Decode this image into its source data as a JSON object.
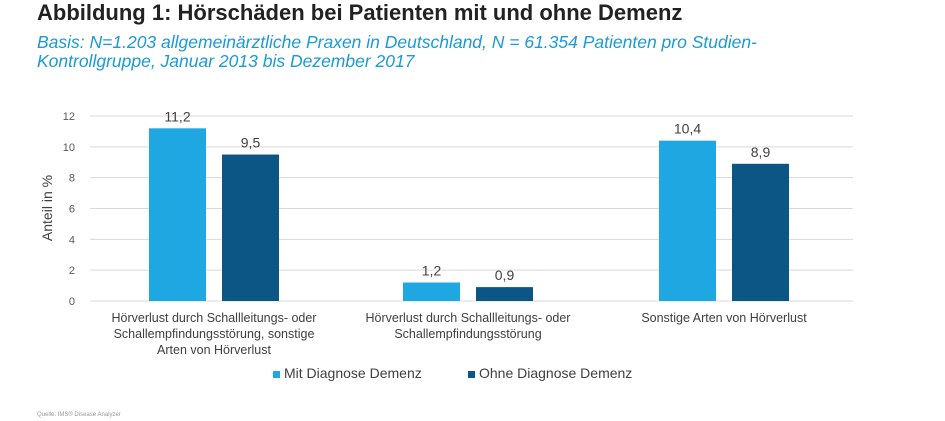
{
  "header": {
    "title": "Abbildung 1: Hörschäden bei Patienten mit und ohne Demenz",
    "subtitle_line1": "Basis: N=1.203 allgemeinärztliche Praxen in Deutschland, N = 61.354 Patienten pro Studien-",
    "subtitle_line2": "Kontrollgruppe, Januar 2013 bis Dezember 2017"
  },
  "chart_data": {
    "type": "bar",
    "title": "Abbildung 1: Hörschäden bei Patienten mit und ohne Demenz",
    "ylabel": "Anteil in %",
    "xlabel": "",
    "ylim": [
      0,
      12
    ],
    "yticks": [
      0,
      2,
      4,
      6,
      8,
      10,
      12
    ],
    "grid": true,
    "legend_position": "bottom",
    "categories": [
      [
        "Hörverlust durch Schallleitungs- oder",
        "Schallempfindungsstörung, sonstige",
        "Arten von Hörverlust"
      ],
      [
        "Hörverlust durch Schallleitungs- oder",
        "Schallempfindungsstörung"
      ],
      [
        "Sonstige Arten von Hörverlust"
      ]
    ],
    "series": [
      {
        "name": "Mit Diagnose Demenz",
        "color": "#1ea7e1",
        "values": [
          11.2,
          1.2,
          10.4
        ],
        "labels": [
          "11,2",
          "1,2",
          "10,4"
        ]
      },
      {
        "name": "Ohne Diagnose Demenz",
        "color": "#0b5685",
        "values": [
          9.5,
          0.9,
          8.9
        ],
        "labels": [
          "9,5",
          "0,9",
          "8,9"
        ]
      }
    ]
  },
  "footer": {
    "source": "Quelle: IMS® Disease Analyzer"
  }
}
